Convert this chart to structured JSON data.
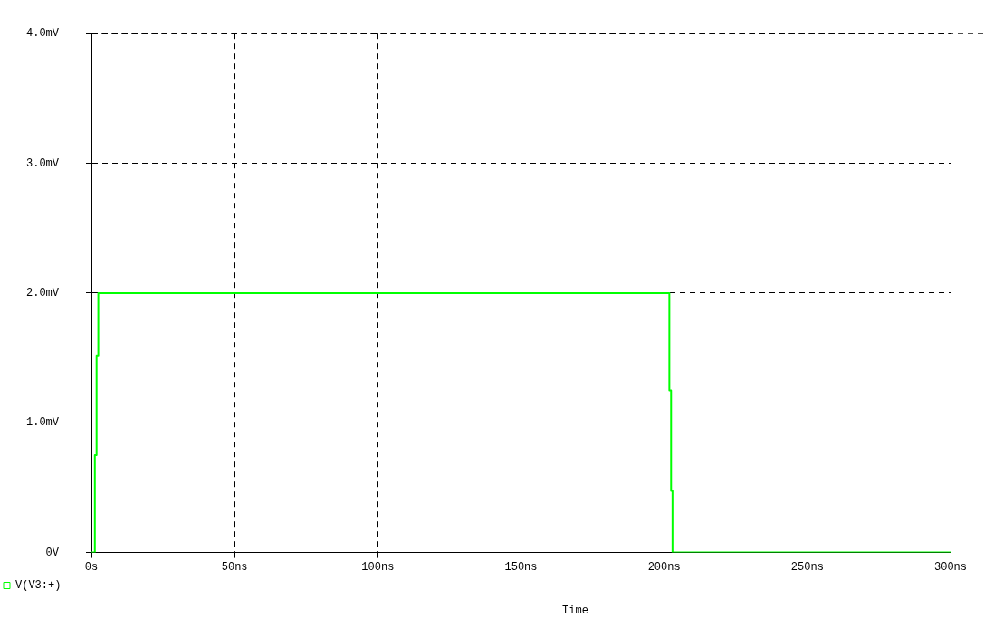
{
  "chart_data": {
    "type": "line",
    "xlabel": "Time",
    "series": [
      {
        "name": "V(V3:+)",
        "color": "#00ff00",
        "x": [
          0,
          1.2,
          1.2,
          1.8,
          1.8,
          2.4,
          2.4,
          201.8,
          201.8,
          202.4,
          202.4,
          202.9,
          202.9,
          300
        ],
        "values": [
          0,
          0,
          0.75,
          0.75,
          1.52,
          1.52,
          2,
          2,
          1.25,
          1.25,
          0.475,
          0.475,
          0,
          0
        ]
      }
    ],
    "xlim": [
      0,
      300
    ],
    "xticks": [
      {
        "value": 0,
        "label": "0s"
      },
      {
        "value": 50,
        "label": "50ns"
      },
      {
        "value": 100,
        "label": "100ns"
      },
      {
        "value": 150,
        "label": "150ns"
      },
      {
        "value": 200,
        "label": "200ns"
      },
      {
        "value": 250,
        "label": "250ns"
      },
      {
        "value": 300,
        "label": "300ns"
      }
    ],
    "ylim": [
      0,
      4
    ],
    "yticks": [
      {
        "value": 0,
        "label": "0V"
      },
      {
        "value": 1,
        "label": "1.0mV"
      },
      {
        "value": 2,
        "label": "2.0mV"
      },
      {
        "value": 3,
        "label": "3.0mV"
      },
      {
        "value": 4,
        "label": "4.0mV"
      }
    ],
    "grid": true,
    "legend": "bottom left",
    "marker": "none",
    "line_style": "solid"
  }
}
